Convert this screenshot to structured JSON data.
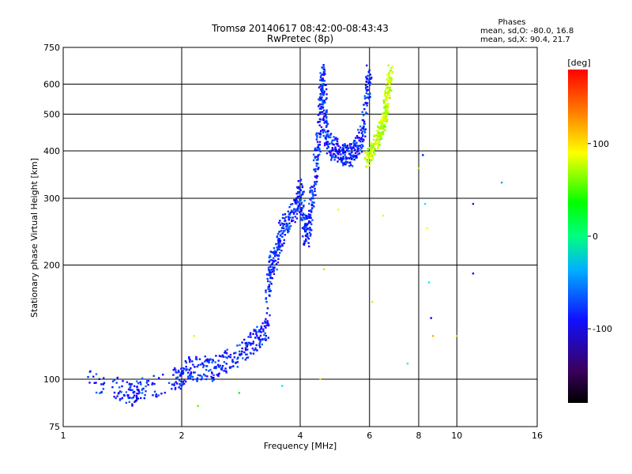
{
  "chart_data": {
    "type": "scatter",
    "title": "Tromsø 20140617 08:42:00-08:43:43",
    "subtitle": "RwPretec (8p)",
    "xlabel": "Frequency [MHz]",
    "ylabel": "Stationary phase Virtual Height [km]",
    "x_scale": "log",
    "y_scale": "log",
    "xlim": [
      1,
      16
    ],
    "ylim": [
      75,
      750
    ],
    "x_ticks": [
      1,
      2,
      4,
      6,
      8,
      10,
      16
    ],
    "y_ticks": [
      75,
      100,
      200,
      300,
      400,
      500,
      600,
      750
    ],
    "grid": true,
    "phase_header": "Phases",
    "stats": [
      "mean, sd,O: -80.0, 16.8",
      "mean, sd,X:  90.4, 21.7"
    ],
    "colorbar": {
      "label": "[deg]",
      "range": [
        -180,
        180
      ],
      "ticks": [
        100,
        0,
        -100
      ]
    },
    "o_trace": {
      "phase_deg": -100,
      "points": [
        [
          1.15,
          99
        ],
        [
          1.35,
          96
        ],
        [
          1.45,
          93
        ],
        [
          1.5,
          91
        ],
        [
          1.55,
          94
        ],
        [
          1.62,
          95
        ],
        [
          1.9,
          100
        ],
        [
          1.98,
          100
        ],
        [
          2.02,
          102
        ],
        [
          2.1,
          110
        ],
        [
          2.2,
          105
        ],
        [
          2.3,
          108
        ],
        [
          2.4,
          106
        ],
        [
          2.5,
          109
        ],
        [
          2.6,
          112
        ],
        [
          2.75,
          116
        ],
        [
          2.9,
          120
        ],
        [
          3.0,
          124
        ],
        [
          3.1,
          128
        ],
        [
          3.2,
          132
        ],
        [
          3.3,
          136
        ],
        [
          3.32,
          180
        ],
        [
          3.35,
          195
        ],
        [
          3.4,
          200
        ],
        [
          3.45,
          210
        ],
        [
          3.5,
          220
        ],
        [
          3.55,
          235
        ],
        [
          3.62,
          250
        ],
        [
          3.7,
          260
        ],
        [
          3.8,
          270
        ],
        [
          3.9,
          285
        ],
        [
          3.95,
          300
        ],
        [
          4.0,
          320
        ],
        [
          4.05,
          280
        ],
        [
          4.1,
          260
        ],
        [
          4.15,
          240
        ],
        [
          4.2,
          250
        ],
        [
          4.25,
          270
        ],
        [
          4.3,
          300
        ],
        [
          4.35,
          340
        ],
        [
          4.4,
          380
        ],
        [
          4.45,
          420
        ],
        [
          4.5,
          480
        ],
        [
          4.52,
          540
        ],
        [
          4.55,
          600
        ],
        [
          4.58,
          650
        ],
        [
          4.6,
          560
        ],
        [
          4.62,
          500
        ],
        [
          4.65,
          450
        ],
        [
          4.7,
          420
        ],
        [
          4.8,
          410
        ],
        [
          4.9,
          405
        ],
        [
          5.0,
          400
        ],
        [
          5.1,
          395
        ],
        [
          5.2,
          390
        ],
        [
          5.3,
          388
        ],
        [
          5.4,
          392
        ],
        [
          5.5,
          400
        ],
        [
          5.6,
          410
        ],
        [
          5.7,
          430
        ],
        [
          5.8,
          470
        ],
        [
          5.9,
          540
        ],
        [
          5.95,
          600
        ],
        [
          6.0,
          660
        ]
      ]
    },
    "x_trace": {
      "phase_deg": 90,
      "points": [
        [
          5.9,
          380
        ],
        [
          6.0,
          390
        ],
        [
          6.1,
          400
        ],
        [
          6.2,
          415
        ],
        [
          6.3,
          430
        ],
        [
          6.4,
          450
        ],
        [
          6.5,
          470
        ],
        [
          6.55,
          490
        ],
        [
          6.6,
          510
        ],
        [
          6.65,
          540
        ],
        [
          6.7,
          580
        ],
        [
          6.75,
          620
        ],
        [
          6.8,
          650
        ]
      ]
    },
    "scattered_points": [
      {
        "x": 2.15,
        "y": 130,
        "phase": 100
      },
      {
        "x": 2.2,
        "y": 85,
        "phase": 60
      },
      {
        "x": 2.8,
        "y": 92,
        "phase": 20
      },
      {
        "x": 3.6,
        "y": 96,
        "phase": -40
      },
      {
        "x": 4.5,
        "y": 100,
        "phase": 120
      },
      {
        "x": 4.6,
        "y": 195,
        "phase": 80
      },
      {
        "x": 5.0,
        "y": 280,
        "phase": 110
      },
      {
        "x": 6.1,
        "y": 160,
        "phase": 90
      },
      {
        "x": 6.5,
        "y": 270,
        "phase": 100
      },
      {
        "x": 7.5,
        "y": 110,
        "phase": -20
      },
      {
        "x": 8.0,
        "y": 360,
        "phase": 80
      },
      {
        "x": 8.2,
        "y": 390,
        "phase": -100
      },
      {
        "x": 8.4,
        "y": 250,
        "phase": 110
      },
      {
        "x": 8.5,
        "y": 180,
        "phase": -40
      },
      {
        "x": 8.6,
        "y": 145,
        "phase": -110
      },
      {
        "x": 8.7,
        "y": 130,
        "phase": 130
      },
      {
        "x": 10.0,
        "y": 130,
        "phase": 80
      },
      {
        "x": 11.0,
        "y": 190,
        "phase": -110
      },
      {
        "x": 11.0,
        "y": 290,
        "phase": -100
      },
      {
        "x": 13.0,
        "y": 330,
        "phase": -60
      },
      {
        "x": 8.3,
        "y": 290,
        "phase": -40
      }
    ]
  }
}
